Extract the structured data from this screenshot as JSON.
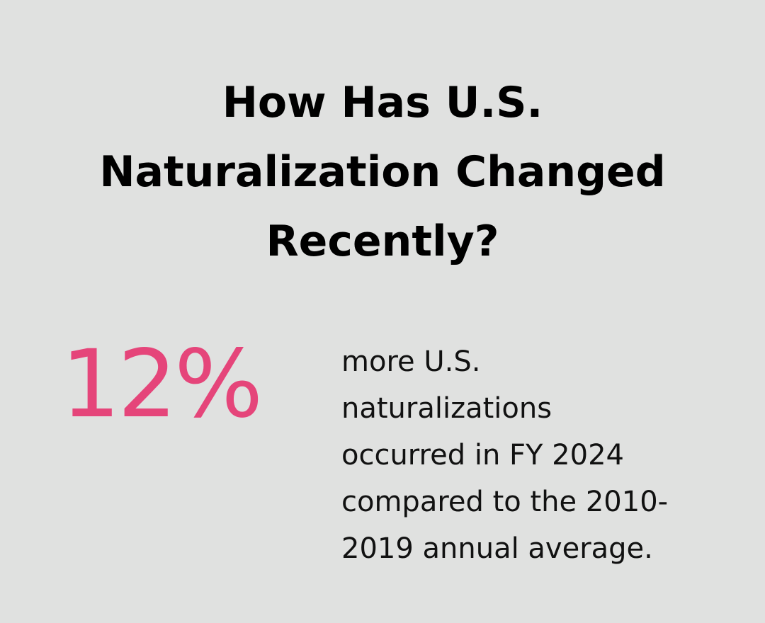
{
  "colors": {
    "background": "#e0e1e0",
    "accent": "#e5457a",
    "text": "#111111"
  },
  "title": {
    "lines": [
      "How Has U.S.",
      "Naturalization Changed",
      "Recently?"
    ]
  },
  "stat": {
    "value": "12%"
  },
  "description": {
    "lines": [
      "more U.S.",
      "naturalizations",
      "occurred in FY 2024",
      "compared to the 2010-",
      "2019 annual average."
    ]
  }
}
